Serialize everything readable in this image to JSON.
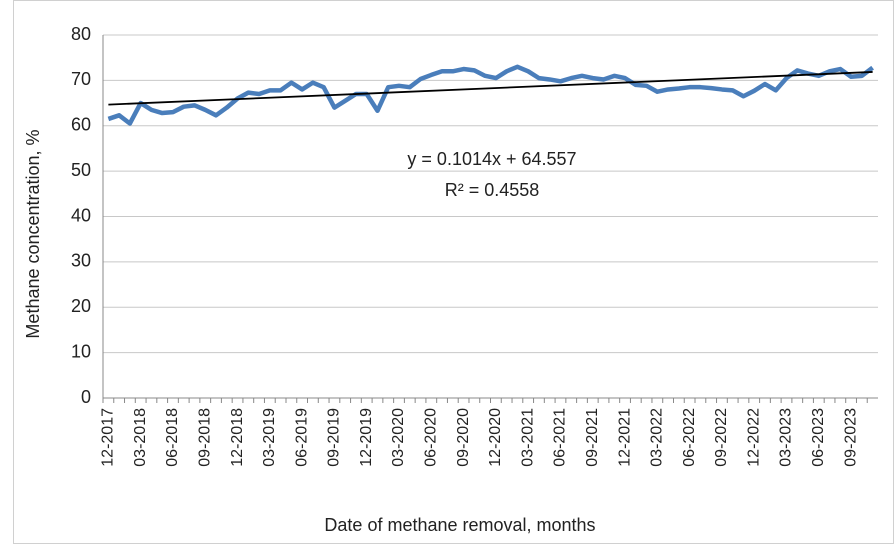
{
  "chart_data": {
    "type": "line",
    "x_label": "Date of methane removal, months",
    "y_label": "Methane concentration, %",
    "categories": [
      "12-2017",
      null,
      null,
      "03-2018",
      null,
      null,
      "06-2018",
      null,
      null,
      "09-2018",
      null,
      null,
      "12-2018",
      null,
      null,
      "03-2019",
      null,
      null,
      "06-2019",
      null,
      null,
      "09-2019",
      null,
      null,
      "12-2019",
      null,
      null,
      "03-2020",
      null,
      null,
      "06-2020",
      null,
      null,
      "09-2020",
      null,
      null,
      "12-2020",
      null,
      null,
      "03-2021",
      null,
      null,
      "06-2021",
      null,
      null,
      "09-2021",
      null,
      null,
      "12-2021",
      null,
      null,
      "03-2022",
      null,
      null,
      "06-2022",
      null,
      null,
      "09-2022",
      null,
      null,
      "12-2022",
      null,
      null,
      "03-2023",
      null,
      null,
      "06-2023",
      null,
      null,
      "09-2023",
      null,
      null
    ],
    "values": [
      61.5,
      62.3,
      60.5,
      65,
      63.5,
      62.8,
      63,
      64.2,
      64.5,
      63.5,
      62.3,
      64,
      66,
      67.3,
      67,
      67.8,
      67.8,
      69.5,
      68,
      69.5,
      68.5,
      64,
      65.5,
      67,
      67,
      63.3,
      68.5,
      68.8,
      68.5,
      70.3,
      71.2,
      72,
      72,
      72.5,
      72.2,
      71,
      70.5,
      72,
      73,
      72,
      70.5,
      70.2,
      69.8,
      70.5,
      71,
      70.5,
      70.2,
      71,
      70.5,
      69,
      68.8,
      67.5,
      68,
      68.2,
      68.5,
      68.5,
      68.3,
      68,
      67.8,
      66.5,
      67.7,
      69.2,
      67.8,
      70.5,
      72.2,
      71.5,
      71,
      72,
      72.5,
      70.8,
      71,
      72.8
    ],
    "color": "#4a7ebb",
    "trendline": {
      "slope": 0.1014,
      "intercept": 64.557,
      "equation": "y = 0.1014x + 64.557",
      "r2": "R² = 0.4558",
      "color": "#000000"
    },
    "ylim": [
      0,
      80
    ],
    "yticks": [
      0,
      10,
      20,
      30,
      40,
      50,
      60,
      70,
      80
    ],
    "grid": true
  }
}
